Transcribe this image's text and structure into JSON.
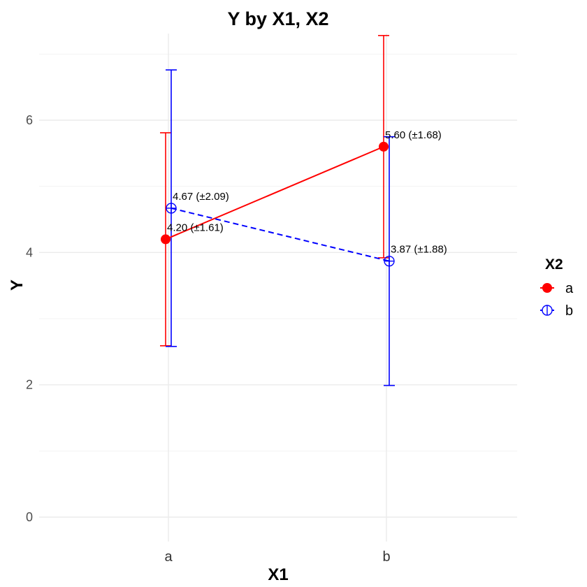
{
  "chart_data": {
    "type": "line",
    "title": "Y by X1, X2",
    "xlabel": "X1",
    "ylabel": "Y",
    "categories": [
      "a",
      "b"
    ],
    "ylim": [
      -0.3,
      7.0
    ],
    "yticks": [
      0,
      2,
      4,
      6
    ],
    "grid": true,
    "legend": {
      "title": "X2",
      "placement": "right"
    },
    "series": [
      {
        "name": "a",
        "color": "#ff0000",
        "marker": "filled-circle",
        "line_style": "solid",
        "values": [
          4.2,
          5.6
        ],
        "errors": [
          1.61,
          1.68
        ],
        "labels": [
          "4.20 (±1.61)",
          "5.60 (±1.68)"
        ]
      },
      {
        "name": "b",
        "color": "#0000ff",
        "marker": "crossed-circle",
        "line_style": "dashed",
        "values": [
          4.67,
          3.87
        ],
        "errors": [
          2.09,
          1.88
        ],
        "labels": [
          "4.67 (±2.09)",
          "3.87 (±1.88)"
        ]
      }
    ]
  }
}
